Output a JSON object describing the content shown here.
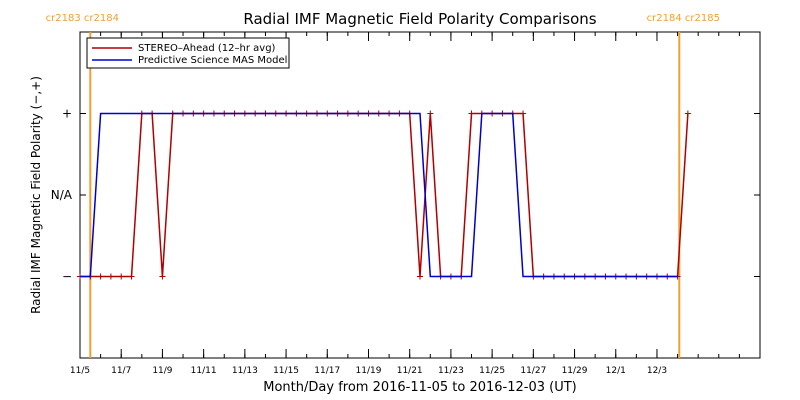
{
  "chart_data": {
    "type": "line",
    "title": "Radial IMF Magnetic Field Polarity Comparisons",
    "xlabel": "Month/Day from 2016-11-05 to 2016-12-03 (UT)",
    "ylabel": "Radial IMF Magnetic Field Polarity (−,+)",
    "x_ticks": [
      "11/5",
      "11/7",
      "11/9",
      "11/11",
      "11/13",
      "11/15",
      "11/17",
      "11/19",
      "11/21",
      "11/23",
      "11/25",
      "11/27",
      "11/29",
      "12/1",
      "12/3"
    ],
    "y_ticks": [
      "+",
      "N/A",
      "−"
    ],
    "y_tick_values": [
      1,
      0,
      -1
    ],
    "xlim": [
      "2016-11-05",
      "2016-12-08"
    ],
    "ylim": [
      -2,
      2
    ],
    "grid": false,
    "legend_position": "top-left",
    "carrington_markers": [
      {
        "date": "2016-11-05 12:00",
        "label": "cr2183 cr2184",
        "side": "left"
      },
      {
        "date": "2016-12-04 02:00",
        "label": "cr2184 cr2185",
        "side": "right"
      }
    ],
    "series": [
      {
        "name": "STEREO–Ahead (12–hr avg)",
        "color": "#b00000",
        "marker": "+",
        "points": [
          [
            "2016-11-05 00:00",
            -1
          ],
          [
            "2016-11-05 12:00",
            -1
          ],
          [
            "2016-11-06 00:00",
            -1
          ],
          [
            "2016-11-06 12:00",
            -1
          ],
          [
            "2016-11-07 00:00",
            -1
          ],
          [
            "2016-11-07 12:00",
            -1
          ],
          [
            "2016-11-08 00:00",
            1
          ],
          [
            "2016-11-08 12:00",
            1
          ],
          [
            "2016-11-09 00:00",
            -1
          ],
          [
            "2016-11-09 12:00",
            1
          ],
          [
            "2016-11-10 00:00",
            1
          ],
          [
            "2016-11-10 12:00",
            1
          ],
          [
            "2016-11-11 00:00",
            1
          ],
          [
            "2016-11-11 12:00",
            1
          ],
          [
            "2016-11-12 00:00",
            1
          ],
          [
            "2016-11-12 12:00",
            1
          ],
          [
            "2016-11-13 00:00",
            1
          ],
          [
            "2016-11-13 12:00",
            1
          ],
          [
            "2016-11-14 00:00",
            1
          ],
          [
            "2016-11-14 12:00",
            1
          ],
          [
            "2016-11-15 00:00",
            1
          ],
          [
            "2016-11-15 12:00",
            1
          ],
          [
            "2016-11-16 00:00",
            1
          ],
          [
            "2016-11-16 12:00",
            1
          ],
          [
            "2016-11-17 00:00",
            1
          ],
          [
            "2016-11-17 12:00",
            1
          ],
          [
            "2016-11-18 00:00",
            1
          ],
          [
            "2016-11-18 12:00",
            1
          ],
          [
            "2016-11-19 00:00",
            1
          ],
          [
            "2016-11-19 12:00",
            1
          ],
          [
            "2016-11-20 00:00",
            1
          ],
          [
            "2016-11-20 12:00",
            1
          ],
          [
            "2016-11-21 00:00",
            1
          ],
          [
            "2016-11-21 12:00",
            -1
          ],
          [
            "2016-11-22 00:00",
            1
          ],
          [
            "2016-11-22 12:00",
            -1
          ],
          [
            "2016-11-23 00:00",
            -1
          ],
          [
            "2016-11-23 12:00",
            -1
          ],
          [
            "2016-11-24 00:00",
            1
          ],
          [
            "2016-11-24 12:00",
            1
          ],
          [
            "2016-11-25 00:00",
            1
          ],
          [
            "2016-11-25 12:00",
            1
          ],
          [
            "2016-11-26 00:00",
            1
          ],
          [
            "2016-11-26 12:00",
            1
          ],
          [
            "2016-11-27 00:00",
            -1
          ],
          [
            "2016-11-27 12:00",
            -1
          ],
          [
            "2016-11-28 00:00",
            -1
          ],
          [
            "2016-11-28 12:00",
            -1
          ],
          [
            "2016-11-29 00:00",
            -1
          ],
          [
            "2016-11-29 12:00",
            -1
          ],
          [
            "2016-11-30 00:00",
            -1
          ],
          [
            "2016-11-30 12:00",
            -1
          ],
          [
            "2016-12-01 00:00",
            -1
          ],
          [
            "2016-12-01 12:00",
            -1
          ],
          [
            "2016-12-02 00:00",
            -1
          ],
          [
            "2016-12-02 12:00",
            -1
          ],
          [
            "2016-12-03 00:00",
            -1
          ],
          [
            "2016-12-03 12:00",
            -1
          ],
          [
            "2016-12-04 00:00",
            -1
          ],
          [
            "2016-12-04 12:00",
            1
          ]
        ]
      },
      {
        "name": "Predictive Science MAS Model",
        "color": "#0000cc",
        "marker": "",
        "points": [
          [
            "2016-11-05 00:00",
            -1
          ],
          [
            "2016-11-05 12:00",
            -1
          ],
          [
            "2016-11-06 00:00",
            1
          ],
          [
            "2016-11-21 12:00",
            1
          ],
          [
            "2016-11-22 00:00",
            -1
          ],
          [
            "2016-11-24 00:00",
            -1
          ],
          [
            "2016-11-24 12:00",
            1
          ],
          [
            "2016-11-26 00:00",
            1
          ],
          [
            "2016-11-26 12:00",
            -1
          ],
          [
            "2016-12-04 00:00",
            -1
          ]
        ]
      }
    ]
  }
}
